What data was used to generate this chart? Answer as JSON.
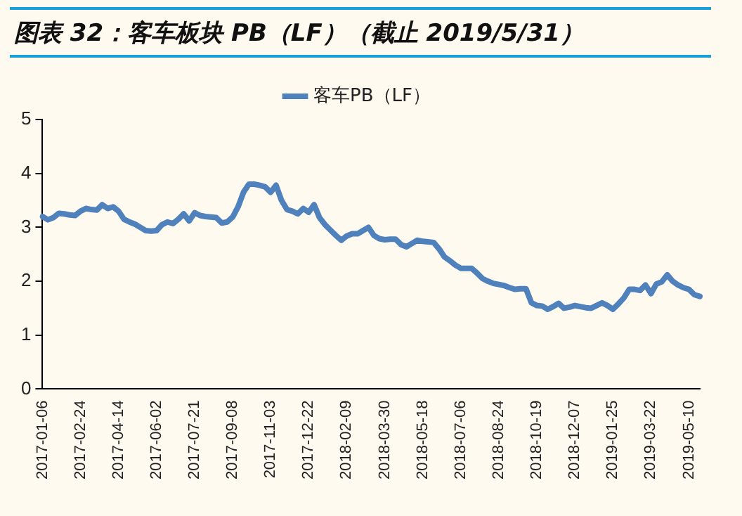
{
  "chart_data": {
    "type": "line",
    "title": "图表 32：客车板块 PB（LF）（截止 2019/5/31）",
    "categories": [
      "2017-01-06",
      null,
      null,
      null,
      null,
      null,
      null,
      "2017-02-24",
      null,
      null,
      null,
      null,
      null,
      null,
      "2017-04-14",
      null,
      null,
      null,
      null,
      null,
      null,
      "2017-06-02",
      null,
      null,
      null,
      null,
      null,
      null,
      "2017-07-21",
      null,
      null,
      null,
      null,
      null,
      null,
      "2017-09-08",
      null,
      null,
      null,
      null,
      null,
      null,
      "2017-11-03",
      null,
      null,
      null,
      null,
      null,
      null,
      "2017-12-22",
      null,
      null,
      null,
      null,
      null,
      null,
      "2018-02-09",
      null,
      null,
      null,
      null,
      null,
      null,
      "2018-03-30",
      null,
      null,
      null,
      null,
      null,
      null,
      "2018-05-18",
      null,
      null,
      null,
      null,
      null,
      null,
      "2018-07-06",
      null,
      null,
      null,
      null,
      null,
      null,
      "2018-08-24",
      null,
      null,
      null,
      null,
      null,
      null,
      "2018-10-19",
      null,
      null,
      null,
      null,
      null,
      null,
      "2018-12-07",
      null,
      null,
      null,
      null,
      null,
      null,
      "2019-01-25",
      null,
      null,
      null,
      null,
      null,
      null,
      "2019-03-22",
      null,
      null,
      null,
      null,
      null,
      null,
      "2019-05-10",
      null,
      null
    ],
    "series": [
      {
        "name": "客车PB（LF）",
        "color": "#4f81bd",
        "values": [
          3.2,
          3.14,
          3.18,
          3.26,
          3.25,
          3.23,
          3.22,
          3.3,
          3.35,
          3.33,
          3.32,
          3.42,
          3.35,
          3.38,
          3.3,
          3.15,
          3.1,
          3.06,
          3.0,
          2.94,
          2.93,
          2.94,
          3.05,
          3.1,
          3.07,
          3.15,
          3.25,
          3.12,
          3.27,
          3.22,
          3.2,
          3.19,
          3.18,
          3.08,
          3.1,
          3.19,
          3.38,
          3.65,
          3.8,
          3.8,
          3.78,
          3.75,
          3.65,
          3.78,
          3.5,
          3.33,
          3.3,
          3.25,
          3.35,
          3.28,
          3.42,
          3.18,
          3.05,
          2.95,
          2.85,
          2.76,
          2.84,
          2.88,
          2.88,
          2.94,
          3.0,
          2.85,
          2.79,
          2.77,
          2.78,
          2.78,
          2.68,
          2.64,
          2.7,
          2.76,
          2.74,
          2.73,
          2.72,
          2.6,
          2.45,
          2.38,
          2.3,
          2.24,
          2.24,
          2.24,
          2.15,
          2.05,
          2.0,
          1.96,
          1.94,
          1.92,
          1.88,
          1.85,
          1.86,
          1.86,
          1.6,
          1.55,
          1.54,
          1.48,
          1.53,
          1.59,
          1.5,
          1.52,
          1.55,
          1.53,
          1.51,
          1.5,
          1.55,
          1.6,
          1.55,
          1.48,
          1.58,
          1.69,
          1.85,
          1.85,
          1.83,
          1.93,
          1.77,
          1.95,
          1.99,
          2.12,
          2.0,
          1.93,
          1.88,
          1.85,
          1.75,
          1.72
        ]
      }
    ],
    "ylim": [
      0,
      5
    ],
    "yticks": [
      0,
      1,
      2,
      3,
      4,
      5
    ],
    "grid": false,
    "legend": "top",
    "marker": "none",
    "line_style": "solid"
  }
}
